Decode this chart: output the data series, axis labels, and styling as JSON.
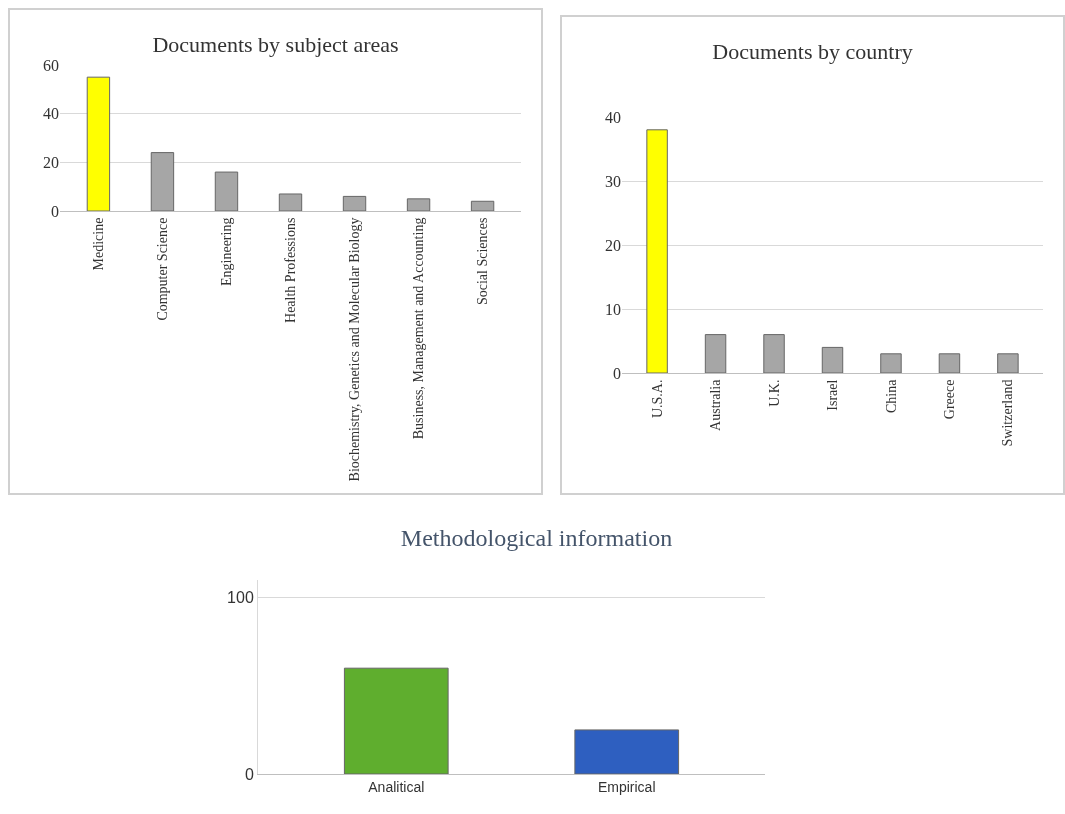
{
  "chart_data": [
    {
      "type": "bar",
      "title": "Documents by subject areas",
      "categories": [
        "Medicine",
        "Computer Science",
        "Engineering",
        "Health Professions",
        "Biochemistry, Genetics and Molecular Biology",
        "Business, Management and Accounting",
        "Social Sciences"
      ],
      "values": [
        55,
        24,
        16,
        7,
        6,
        5,
        4
      ],
      "colors": [
        "#ffff00",
        "#a6a6a6",
        "#a6a6a6",
        "#a6a6a6",
        "#a6a6a6",
        "#a6a6a6",
        "#a6a6a6"
      ],
      "ylim": [
        0,
        60
      ],
      "yticks": [
        0,
        20,
        40,
        60
      ],
      "grid": "y"
    },
    {
      "type": "bar",
      "title": "Documents by country",
      "categories": [
        "U.S.A.",
        "Australia",
        "U.K.",
        "Israel",
        "China",
        "Greece",
        "Switzerland"
      ],
      "values": [
        38,
        6,
        6,
        4,
        3,
        3,
        3
      ],
      "colors": [
        "#ffff00",
        "#a6a6a6",
        "#a6a6a6",
        "#a6a6a6",
        "#a6a6a6",
        "#a6a6a6",
        "#a6a6a6"
      ],
      "ylim": [
        0,
        40
      ],
      "yticks": [
        0,
        10,
        20,
        30,
        40
      ],
      "grid": "y"
    },
    {
      "type": "bar",
      "title": "Methodological information",
      "categories": [
        "Analitical",
        "Empirical"
      ],
      "values": [
        60,
        25
      ],
      "colors": [
        "#5fae2e",
        "#2e5fc0"
      ],
      "ylim": [
        0,
        110
      ],
      "yticks": [
        0,
        100
      ],
      "grid": "y"
    }
  ]
}
